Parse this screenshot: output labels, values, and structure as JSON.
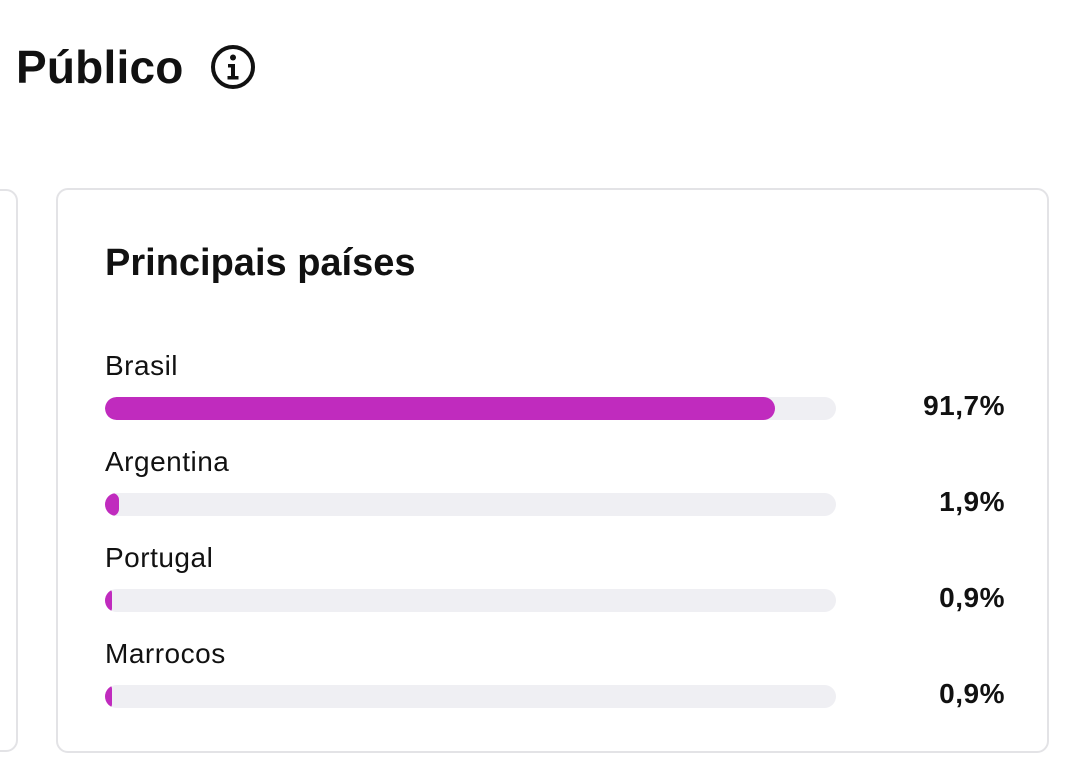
{
  "header": {
    "title": "Público",
    "info_icon": "info-circle-icon"
  },
  "card": {
    "title": "Principais países",
    "countries": [
      {
        "name": "Brasil",
        "value_label": "91,7%",
        "fraction": 0.917
      },
      {
        "name": "Argentina",
        "value_label": "1,9%",
        "fraction": 0.019
      },
      {
        "name": "Portugal",
        "value_label": "0,9%",
        "fraction": 0.009
      },
      {
        "name": "Marrocos",
        "value_label": "0,9%",
        "fraction": 0.009
      }
    ]
  },
  "colors": {
    "bar_fill": "#c02bbe",
    "bar_track": "#efeff3",
    "card_border": "#e3e3e6",
    "text": "#111111"
  }
}
